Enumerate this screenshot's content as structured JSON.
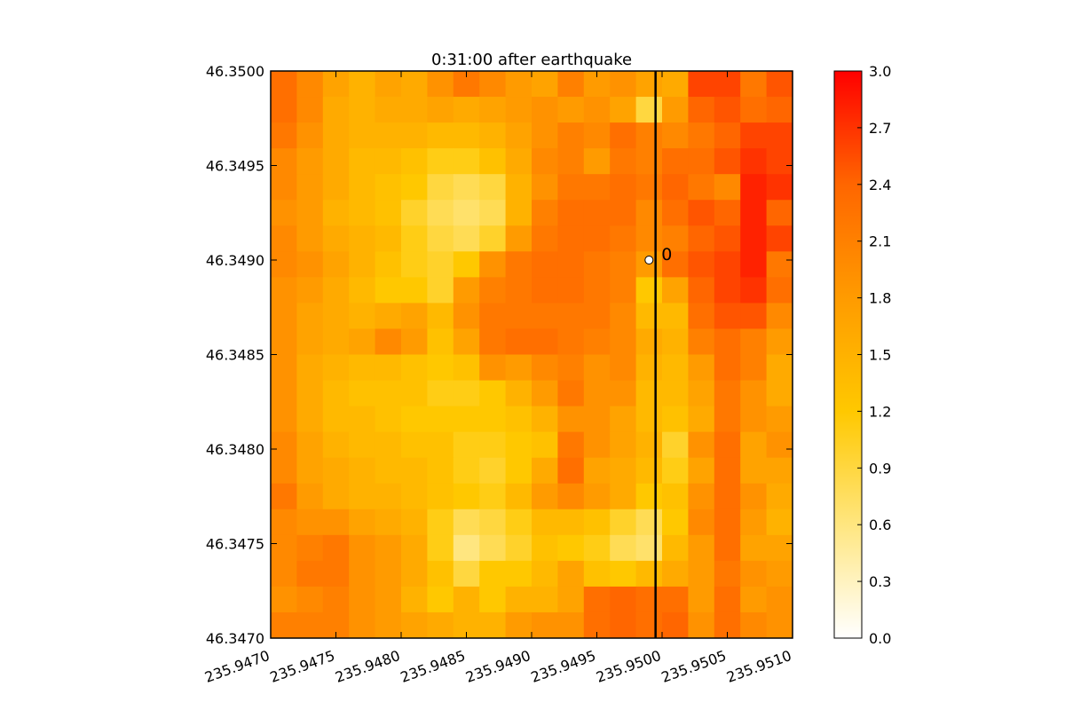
{
  "chart_data": {
    "type": "heatmap",
    "title": "0:31:00 after earthquake",
    "xlabel": "",
    "ylabel": "",
    "xlim": [
      235.947,
      235.951
    ],
    "ylim": [
      46.347,
      46.35
    ],
    "x_ticks": [
      "235.9470",
      "235.9475",
      "235.9480",
      "235.9485",
      "235.9490",
      "235.9495",
      "235.9500",
      "235.9505",
      "235.9510"
    ],
    "y_ticks": [
      "46.3470",
      "46.3475",
      "46.3480",
      "46.3485",
      "46.3490",
      "46.3495",
      "46.3500"
    ],
    "colorbar": {
      "range": [
        0.0,
        3.0
      ],
      "ticks": [
        "0.0",
        "0.3",
        "0.6",
        "0.9",
        "1.2",
        "1.5",
        "1.8",
        "2.1",
        "2.4",
        "2.7",
        "3.0"
      ],
      "colormap": [
        "#ffffff",
        "#ffe680",
        "#ffc800",
        "#ff9b00",
        "#ff6600",
        "#ff0000"
      ]
    },
    "grid": false,
    "transect": {
      "x": 235.94995
    },
    "gauge": {
      "x": 235.9499,
      "y": 46.349,
      "label": "0"
    },
    "field_grid": {
      "nx": 20,
      "ny": 22,
      "rows_top_to_bottom": [
        [
          2.3,
          2.0,
          1.7,
          1.5,
          1.7,
          1.6,
          1.9,
          2.2,
          2.0,
          1.8,
          1.7,
          2.1,
          1.8,
          1.9,
          1.7,
          1.6,
          2.6,
          2.6,
          2.2,
          2.5
        ],
        [
          2.3,
          2.0,
          1.6,
          1.5,
          1.6,
          1.6,
          1.7,
          1.6,
          1.7,
          1.8,
          1.9,
          1.8,
          1.9,
          1.7,
          0.9,
          1.8,
          2.4,
          2.5,
          2.3,
          2.4
        ],
        [
          2.2,
          1.9,
          1.6,
          1.5,
          1.5,
          1.5,
          1.4,
          1.4,
          1.5,
          1.7,
          1.9,
          2.1,
          2.0,
          2.3,
          2.1,
          2.0,
          2.2,
          2.4,
          2.6,
          2.6
        ],
        [
          2.0,
          1.8,
          1.6,
          1.4,
          1.4,
          1.3,
          1.1,
          1.1,
          1.3,
          1.6,
          2.0,
          2.1,
          1.8,
          2.2,
          2.1,
          2.3,
          2.3,
          2.5,
          2.7,
          2.6
        ],
        [
          2.0,
          1.8,
          1.6,
          1.4,
          1.3,
          1.2,
          0.9,
          0.8,
          0.9,
          1.5,
          1.9,
          2.2,
          2.2,
          2.3,
          2.2,
          2.4,
          2.2,
          2.0,
          2.8,
          2.7
        ],
        [
          1.9,
          1.8,
          1.5,
          1.4,
          1.3,
          1.0,
          0.8,
          0.7,
          0.8,
          1.5,
          2.1,
          2.3,
          2.3,
          2.3,
          2.0,
          2.3,
          2.5,
          2.4,
          2.8,
          2.4
        ],
        [
          2.0,
          1.8,
          1.6,
          1.5,
          1.4,
          1.1,
          0.9,
          0.8,
          1.0,
          1.8,
          2.2,
          2.3,
          2.3,
          2.2,
          2.0,
          2.1,
          2.4,
          2.5,
          2.8,
          2.6
        ],
        [
          2.0,
          1.9,
          1.7,
          1.5,
          1.3,
          1.1,
          1.0,
          1.2,
          1.9,
          2.2,
          2.3,
          2.3,
          2.2,
          2.1,
          1.8,
          2.3,
          2.5,
          2.6,
          2.8,
          2.2
        ],
        [
          1.9,
          1.8,
          1.6,
          1.4,
          1.2,
          1.2,
          1.0,
          1.8,
          2.1,
          2.2,
          2.3,
          2.3,
          2.2,
          2.1,
          1.2,
          1.7,
          2.4,
          2.6,
          2.7,
          2.3
        ],
        [
          1.9,
          1.7,
          1.6,
          1.5,
          1.6,
          1.7,
          1.4,
          1.9,
          2.2,
          2.2,
          2.2,
          2.2,
          2.2,
          2.0,
          1.4,
          1.4,
          2.3,
          2.5,
          2.5,
          2.0
        ],
        [
          1.9,
          1.7,
          1.6,
          1.7,
          2.0,
          1.8,
          1.3,
          1.7,
          2.2,
          2.3,
          2.3,
          2.2,
          2.1,
          2.0,
          1.6,
          1.5,
          2.1,
          2.3,
          2.1,
          1.8
        ],
        [
          1.9,
          1.6,
          1.5,
          1.4,
          1.4,
          1.3,
          1.2,
          1.3,
          1.9,
          1.8,
          2.0,
          2.1,
          1.9,
          2.0,
          1.5,
          1.4,
          1.8,
          2.3,
          2.1,
          1.6
        ],
        [
          1.9,
          1.6,
          1.4,
          1.3,
          1.3,
          1.3,
          1.1,
          1.1,
          1.2,
          1.5,
          1.8,
          2.2,
          1.9,
          1.9,
          1.4,
          1.4,
          1.7,
          2.2,
          1.9,
          1.6
        ],
        [
          1.9,
          1.6,
          1.4,
          1.4,
          1.3,
          1.2,
          1.2,
          1.2,
          1.2,
          1.3,
          1.5,
          1.9,
          1.9,
          1.7,
          1.4,
          1.3,
          1.6,
          2.2,
          1.9,
          1.8
        ],
        [
          2.0,
          1.7,
          1.5,
          1.4,
          1.4,
          1.3,
          1.3,
          1.1,
          1.1,
          1.2,
          1.3,
          2.2,
          1.9,
          1.7,
          1.5,
          1.0,
          1.9,
          2.3,
          1.7,
          1.9
        ],
        [
          2.0,
          1.7,
          1.6,
          1.5,
          1.4,
          1.4,
          1.3,
          1.1,
          1.0,
          1.2,
          1.6,
          2.3,
          1.7,
          1.6,
          1.4,
          1.1,
          1.7,
          2.3,
          1.7,
          1.7
        ],
        [
          2.2,
          1.8,
          1.6,
          1.5,
          1.5,
          1.4,
          1.3,
          1.2,
          1.1,
          1.4,
          1.8,
          2.0,
          1.8,
          1.6,
          1.2,
          1.3,
          1.9,
          2.3,
          1.9,
          1.6
        ],
        [
          2.0,
          1.9,
          1.9,
          1.7,
          1.6,
          1.5,
          1.1,
          0.8,
          0.9,
          1.1,
          1.4,
          1.4,
          1.3,
          1.0,
          0.8,
          1.2,
          2.0,
          2.3,
          1.8,
          1.5
        ],
        [
          2.0,
          2.1,
          2.2,
          1.9,
          1.8,
          1.6,
          1.1,
          0.6,
          0.8,
          1.0,
          1.3,
          1.2,
          1.1,
          0.8,
          0.7,
          1.4,
          1.8,
          2.3,
          1.7,
          1.7
        ],
        [
          2.0,
          2.2,
          2.2,
          1.9,
          1.8,
          1.6,
          1.3,
          0.9,
          1.2,
          1.2,
          1.4,
          1.7,
          1.3,
          1.2,
          1.4,
          1.6,
          1.8,
          2.2,
          1.9,
          1.8
        ],
        [
          1.9,
          2.0,
          2.1,
          1.9,
          1.8,
          1.5,
          1.2,
          1.5,
          1.2,
          1.5,
          1.5,
          1.7,
          2.3,
          2.4,
          2.3,
          2.3,
          1.8,
          2.3,
          1.8,
          1.9
        ],
        [
          2.1,
          2.1,
          2.1,
          1.9,
          1.8,
          1.7,
          1.6,
          1.5,
          1.5,
          1.8,
          1.9,
          1.9,
          2.3,
          2.4,
          2.3,
          2.4,
          1.9,
          2.3,
          2.0,
          1.9
        ]
      ]
    }
  }
}
